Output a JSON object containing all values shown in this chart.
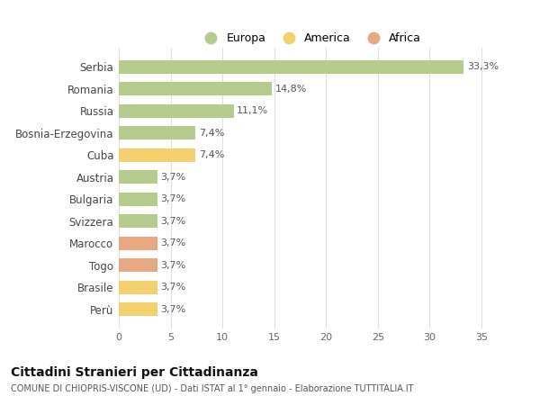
{
  "categories": [
    "Serbia",
    "Romania",
    "Russia",
    "Bosnia-Erzegovina",
    "Cuba",
    "Austria",
    "Bulgaria",
    "Svizzera",
    "Marocco",
    "Togo",
    "Brasile",
    "Perù"
  ],
  "values": [
    33.3,
    14.8,
    11.1,
    7.4,
    7.4,
    3.7,
    3.7,
    3.7,
    3.7,
    3.7,
    3.7,
    3.7
  ],
  "labels": [
    "33,3%",
    "14,8%",
    "11,1%",
    "7,4%",
    "7,4%",
    "3,7%",
    "3,7%",
    "3,7%",
    "3,7%",
    "3,7%",
    "3,7%",
    "3,7%"
  ],
  "colors": [
    "#b5cc8e",
    "#b5cc8e",
    "#b5cc8e",
    "#b5cc8e",
    "#f5d06e",
    "#b5cc8e",
    "#b5cc8e",
    "#b5cc8e",
    "#e8a882",
    "#e8a882",
    "#f5d06e",
    "#f5d06e"
  ],
  "legend_labels": [
    "Europa",
    "America",
    "Africa"
  ],
  "legend_colors": [
    "#b5cc8e",
    "#f5d06e",
    "#e8a882"
  ],
  "title": "Cittadini Stranieri per Cittadinanza",
  "subtitle": "COMUNE DI CHIOPRIS-VISCONE (UD) - Dati ISTAT al 1° gennaio - Elaborazione TUTTITALIA.IT",
  "xlim": [
    0,
    37
  ],
  "xticks": [
    0,
    5,
    10,
    15,
    20,
    25,
    30,
    35
  ],
  "bg_color": "#ffffff",
  "grid_color": "#e0e0e0",
  "bar_height": 0.6
}
